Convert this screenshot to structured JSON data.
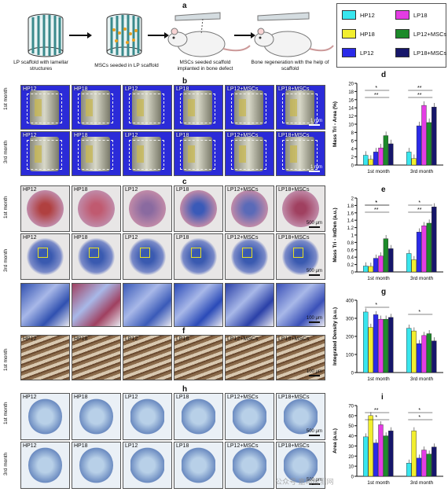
{
  "panel_letters": {
    "a": "a",
    "b": "b",
    "c": "c",
    "d": "d",
    "e": "e",
    "f": "f",
    "g": "g",
    "h": "h",
    "i": "i"
  },
  "schematic": {
    "steps": [
      "LP scaffold with lamellar structures",
      "MSCs seeded in LP scaffold",
      "MSCs seeded scaffold implanted in bone defect",
      "Bone regeneration with the help of scaffold"
    ]
  },
  "legend": [
    {
      "name": "HP12",
      "color": "#38e6ee"
    },
    {
      "name": "LP18",
      "color": "#e43ce4"
    },
    {
      "name": "HP18",
      "color": "#f2ee2e"
    },
    {
      "name": "LP12+MSCs",
      "color": "#1c8a2a"
    },
    {
      "name": "LP12",
      "color": "#2a2ae8"
    },
    {
      "name": "LP18+MSCs",
      "color": "#16166a"
    }
  ],
  "groups": [
    "HP12",
    "HP18",
    "LP12",
    "LP18",
    "LP12+MSCs",
    "LP18+MSCs"
  ],
  "row_labels": {
    "first": "1st month",
    "third": "3rd month"
  },
  "scale": {
    "b": "1 mm",
    "c_top": "500 μm",
    "c_zoom": "100 μm",
    "f": "100 μm",
    "h": "500 μm"
  },
  "watermark": "公众号 嘉峪检测网",
  "chart_data": [
    {
      "id": "d",
      "type": "bar",
      "ylabel": "Mass Tri - Area (%)",
      "ylim": [
        0,
        20
      ],
      "yticks": [
        0,
        2,
        4,
        6,
        8,
        10,
        12,
        14,
        16,
        18,
        20
      ],
      "categories": [
        "1st month",
        "3rd month"
      ],
      "series": [
        {
          "name": "HP12",
          "values": [
            2.4,
            3.2
          ]
        },
        {
          "name": "HP18",
          "values": [
            1.4,
            1.6
          ]
        },
        {
          "name": "LP12",
          "values": [
            3.2,
            9.6
          ]
        },
        {
          "name": "LP18",
          "values": [
            4.2,
            14.6
          ]
        },
        {
          "name": "LP12+MSCs",
          "values": [
            7.2,
            10.4
          ]
        },
        {
          "name": "LP18+MSCs",
          "values": [
            5.2,
            14.2
          ]
        }
      ],
      "annotations": [
        "*",
        "**",
        "**",
        "**"
      ]
    },
    {
      "id": "e",
      "type": "bar",
      "ylabel": "Mass Tri - IntDen (a.u.)",
      "ylim": [
        0,
        2.0
      ],
      "yticks": [
        0.0,
        0.2,
        0.4,
        0.6,
        0.8,
        1.0,
        1.2,
        1.4,
        1.6,
        1.8,
        2.0
      ],
      "categories": [
        "1st month",
        "3rd month"
      ],
      "series": [
        {
          "name": "HP12",
          "values": [
            0.16,
            0.5
          ]
        },
        {
          "name": "HP18",
          "values": [
            0.15,
            0.33
          ]
        },
        {
          "name": "LP12",
          "values": [
            0.37,
            1.08
          ]
        },
        {
          "name": "LP18",
          "values": [
            0.43,
            1.25
          ]
        },
        {
          "name": "LP12+MSCs",
          "values": [
            0.9,
            1.32
          ]
        },
        {
          "name": "LP18+MSCs",
          "values": [
            0.63,
            1.76
          ]
        }
      ],
      "annotations": [
        "*",
        "**",
        "*",
        "**",
        "*"
      ]
    },
    {
      "id": "g",
      "type": "bar",
      "ylabel": "Integrated Density (a.u.)",
      "ylim": [
        0,
        400
      ],
      "yticks": [
        0,
        100,
        200,
        300,
        400
      ],
      "categories": [
        "1st month",
        "3rd month"
      ],
      "series": [
        {
          "name": "HP12",
          "values": [
            335,
            245
          ]
        },
        {
          "name": "HP18",
          "values": [
            250,
            230
          ]
        },
        {
          "name": "LP12",
          "values": [
            320,
            160
          ]
        },
        {
          "name": "LP18",
          "values": [
            295,
            205
          ]
        },
        {
          "name": "LP12+MSCs",
          "values": [
            295,
            215
          ]
        },
        {
          "name": "LP18+MSCs",
          "values": [
            305,
            175
          ]
        }
      ],
      "annotations": [
        "*",
        "*"
      ]
    },
    {
      "id": "i",
      "type": "bar",
      "ylabel": "Area (a.u.)",
      "ylim": [
        0,
        70
      ],
      "yticks": [
        0,
        10,
        20,
        30,
        40,
        50,
        60,
        70
      ],
      "categories": [
        "1st month",
        "3rd month"
      ],
      "series": [
        {
          "name": "HP12",
          "values": [
            39,
            13
          ]
        },
        {
          "name": "HP18",
          "values": [
            60,
            45
          ]
        },
        {
          "name": "LP12",
          "values": [
            33,
            18
          ]
        },
        {
          "name": "LP18",
          "values": [
            51,
            26
          ]
        },
        {
          "name": "LP12+MSCs",
          "values": [
            40,
            22
          ]
        },
        {
          "name": "LP18+MSCs",
          "values": [
            45,
            29
          ]
        }
      ],
      "annotations": [
        "**",
        "*",
        "*",
        "*"
      ]
    }
  ]
}
